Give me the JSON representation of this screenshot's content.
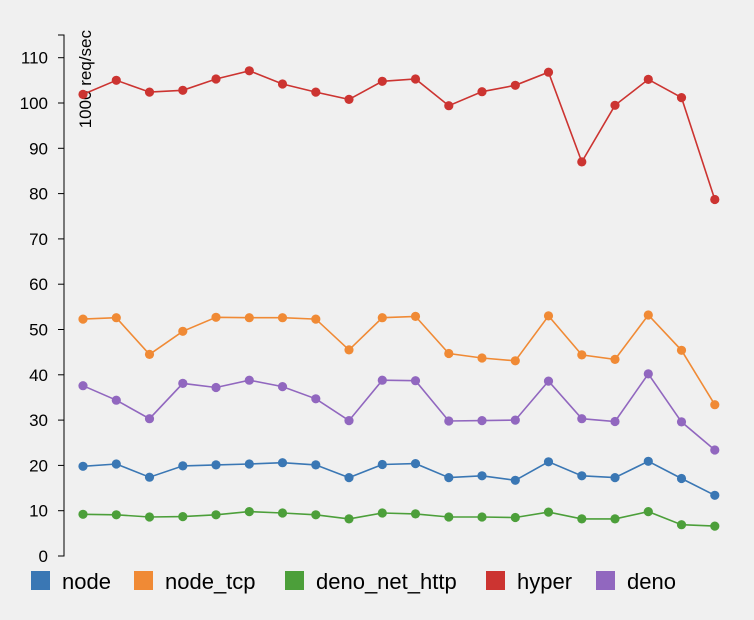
{
  "chart_data": {
    "type": "line",
    "title": "",
    "xlabel": "",
    "ylabel": "1000 req/sec",
    "ylim": [
      0,
      115
    ],
    "yticks": [
      0,
      10,
      20,
      30,
      40,
      50,
      60,
      70,
      80,
      90,
      100,
      110
    ],
    "x": [
      1,
      2,
      3,
      4,
      5,
      6,
      7,
      8,
      9,
      10,
      11,
      12,
      13,
      14,
      15,
      16,
      17,
      18,
      19,
      20
    ],
    "grid": false,
    "legend_position": "bottom",
    "series": [
      {
        "name": "node",
        "color": "#3a77b4",
        "values": [
          19.8,
          20.3,
          17.4,
          19.9,
          20.1,
          20.3,
          20.6,
          20.1,
          17.3,
          20.2,
          20.4,
          17.3,
          17.7,
          16.7,
          20.8,
          17.7,
          17.3,
          20.9,
          17.1,
          13.4
        ]
      },
      {
        "name": "node_tcp",
        "color": "#f08a35",
        "values": [
          52.3,
          52.6,
          44.5,
          49.6,
          52.7,
          52.6,
          52.6,
          52.3,
          45.5,
          52.6,
          52.9,
          44.7,
          43.7,
          43.1,
          53.0,
          44.4,
          43.4,
          53.2,
          45.4,
          33.4
        ]
      },
      {
        "name": "deno_net_http",
        "color": "#4c9f3a",
        "values": [
          9.2,
          9.1,
          8.6,
          8.7,
          9.1,
          9.8,
          9.5,
          9.1,
          8.2,
          9.5,
          9.3,
          8.6,
          8.6,
          8.5,
          9.7,
          8.2,
          8.2,
          9.8,
          6.9,
          6.6
        ]
      },
      {
        "name": "hyper",
        "color": "#cc3431",
        "values": [
          101.9,
          105.0,
          102.4,
          102.8,
          105.3,
          107.1,
          104.2,
          102.4,
          100.8,
          104.8,
          105.3,
          99.4,
          102.5,
          103.9,
          106.8,
          87.0,
          99.5,
          105.2,
          101.2,
          78.7
        ]
      },
      {
        "name": "deno",
        "color": "#9167bf",
        "values": [
          37.6,
          34.4,
          30.3,
          38.1,
          37.2,
          38.8,
          37.4,
          34.7,
          29.9,
          38.8,
          38.7,
          29.8,
          29.9,
          30.0,
          38.6,
          30.3,
          29.7,
          40.2,
          29.6,
          23.4
        ]
      }
    ],
    "legend_order": [
      "node",
      "node_tcp",
      "deno_net_http",
      "hyper",
      "deno"
    ]
  }
}
